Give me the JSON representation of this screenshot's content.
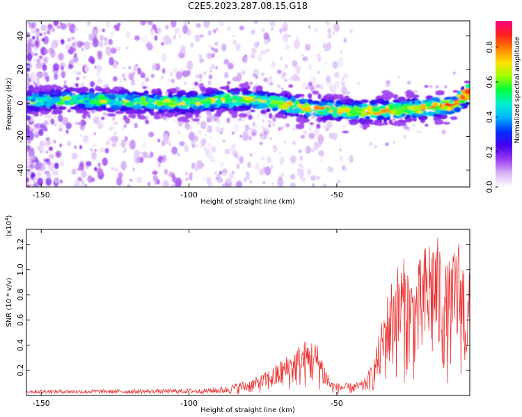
{
  "title": "C2E5.2023.287.08.15.G18",
  "chart_data": [
    {
      "type": "heatmap",
      "title": "C2E5.2023.287.08.15.G18",
      "xlabel": "Height of straight line (km)",
      "ylabel": "Frequency (Hz)",
      "xlim": [
        -155,
        -5
      ],
      "ylim": [
        -50,
        49
      ],
      "x_ticks": [
        -150,
        -100,
        -50
      ],
      "y_ticks": [
        -40,
        -20,
        0,
        20,
        40
      ],
      "colorbar": {
        "label": "Normalized spectral amplitude",
        "ticks": [
          0.0,
          0.2,
          0.4,
          0.6,
          0.8
        ],
        "range": [
          0.0,
          0.95
        ],
        "colors": [
          "#ffffff",
          "#d6b3f5",
          "#9b3bf0",
          "#4400ee",
          "#0030ff",
          "#00b4ff",
          "#00f0d0",
          "#00ff40",
          "#a0ff00",
          "#ffe000",
          "#ff8000",
          "#ff2020",
          "#ff0080"
        ]
      },
      "ridge_center_hz": {
        "x": [
          -155,
          -140,
          -120,
          -100,
          -90,
          -80,
          -70,
          -60,
          -50,
          -40,
          -30,
          -20,
          -10,
          -7,
          -5
        ],
        "y": [
          1,
          2,
          1,
          0,
          2,
          2,
          0,
          -3,
          -4,
          -5,
          -4,
          -3,
          -1,
          4,
          7
        ]
      },
      "grid": false
    },
    {
      "type": "line",
      "xlabel": "Height of straight line (km)",
      "ylabel": "SNR (10 * v/v)",
      "y_multiplier_label": "(x10",
      "y_multiplier_exp": "4",
      "xlim": [
        -155,
        -5
      ],
      "ylim": [
        0,
        1.32
      ],
      "x_ticks": [
        -150,
        -100,
        -50
      ],
      "y_ticks": [
        0.2,
        0.4,
        0.6,
        0.8,
        1.0,
        1.2
      ],
      "series_color": "#ee3333",
      "envelope": {
        "x": [
          -155,
          -120,
          -95,
          -88,
          -84,
          -80,
          -76,
          -72,
          -68,
          -64,
          -61,
          -58,
          -56,
          -54,
          -52,
          -50,
          -47,
          -44,
          -41,
          -38,
          -36,
          -34,
          -32,
          -30,
          -27,
          -24,
          -21,
          -19,
          -17,
          -15,
          -13,
          -11,
          -9,
          -7,
          -6,
          -5
        ],
        "y": [
          0.04,
          0.04,
          0.05,
          0.07,
          0.1,
          0.12,
          0.16,
          0.22,
          0.3,
          0.38,
          0.44,
          0.45,
          0.4,
          0.25,
          0.12,
          0.1,
          0.1,
          0.1,
          0.12,
          0.25,
          0.45,
          0.7,
          0.9,
          1.05,
          1.1,
          0.95,
          1.15,
          1.28,
          1.32,
          1.22,
          1.05,
          1.1,
          1.3,
          1.1,
          0.8,
          1.02
        ]
      },
      "grid": false
    }
  ]
}
